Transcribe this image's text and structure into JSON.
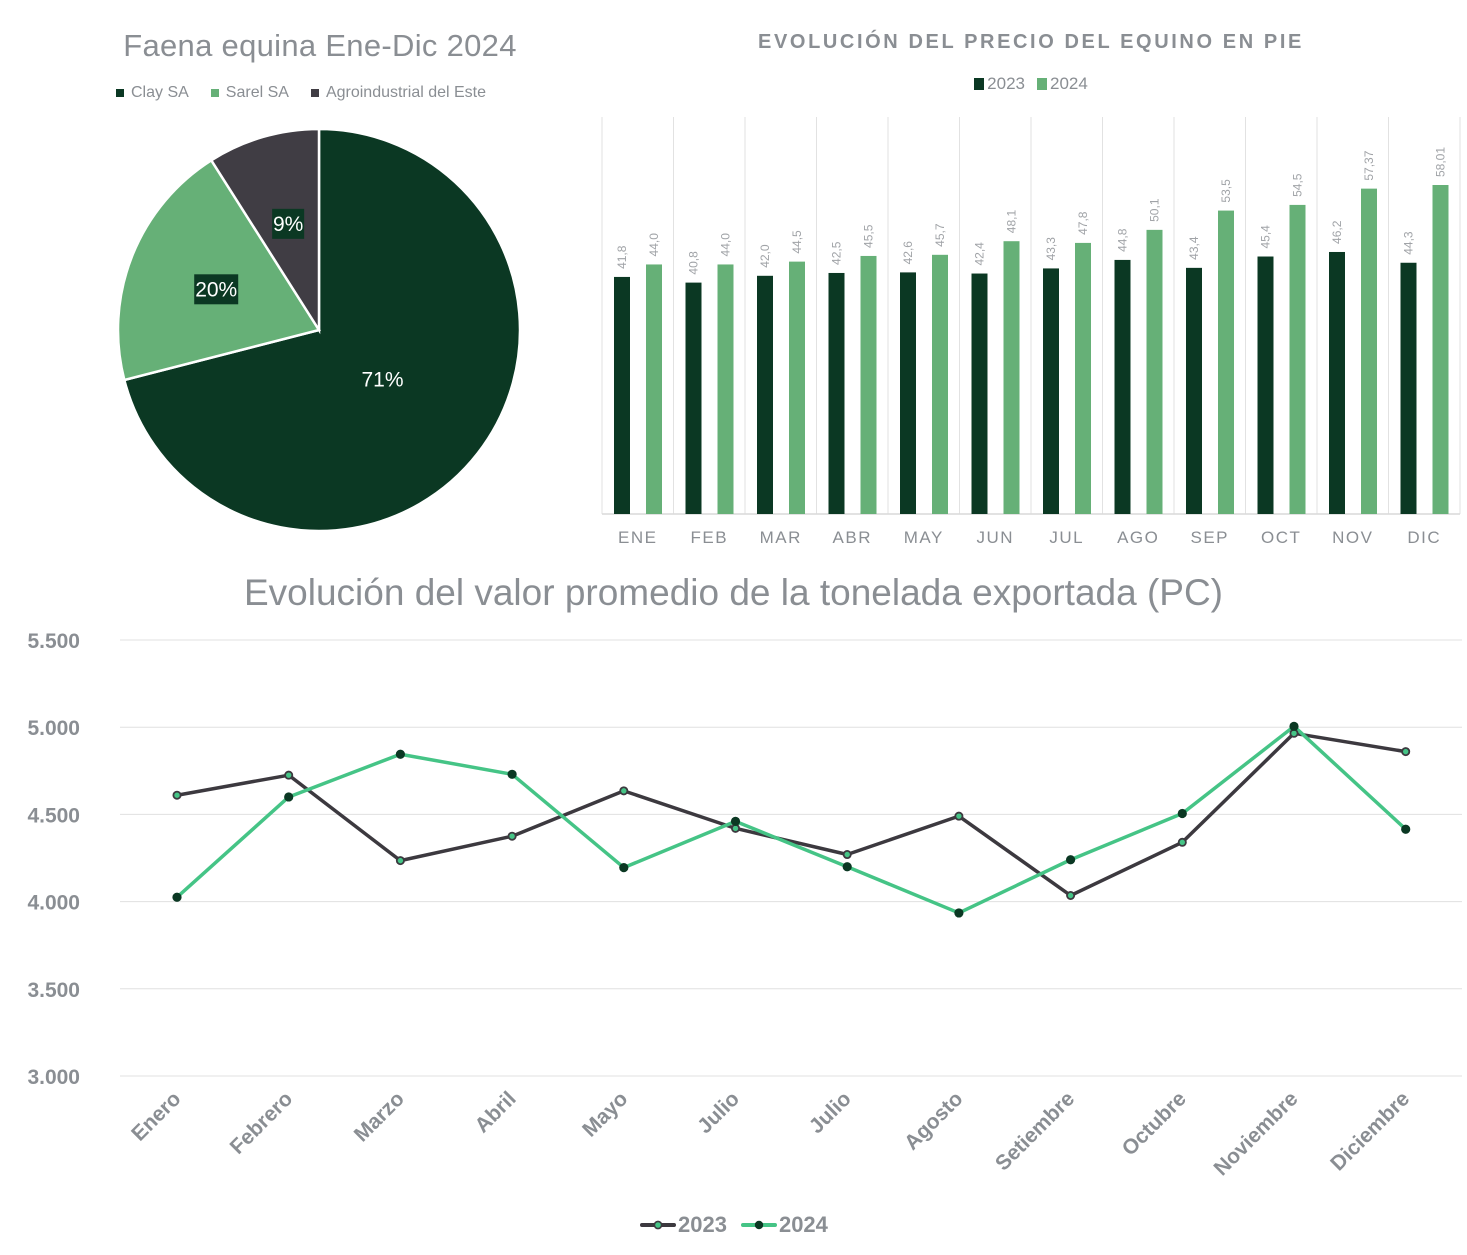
{
  "colors": {
    "dark_green": "#0b3823",
    "light_green": "#66b077",
    "gray": "#403d44",
    "line_2023": "#3c393f",
    "line_2024": "#45c486",
    "text": "#8a8e93",
    "grid": "#dcdcdc"
  },
  "chart_data": [
    {
      "type": "pie",
      "title": "Faena equina Ene-Dic 2024",
      "legend_position": "top",
      "slices": [
        {
          "label": "Clay SA",
          "value": 71,
          "display": "71%",
          "color": "#0b3823"
        },
        {
          "label": "Sarel SA",
          "value": 20,
          "display": "20%",
          "color": "#66b077"
        },
        {
          "label": "Agroindustrial del Este",
          "value": 9,
          "display": "9%",
          "color": "#403d44"
        }
      ]
    },
    {
      "type": "bar",
      "title": "EVOLUCIÓN DEL PRECIO DEL EQUINO EN PIE",
      "legend_position": "top",
      "categories": [
        "ENE",
        "FEB",
        "MAR",
        "ABR",
        "MAY",
        "JUN",
        "JUL",
        "AGO",
        "SEP",
        "OCT",
        "NOV",
        "DIC"
      ],
      "series": [
        {
          "name": "2023",
          "color": "#0b3823",
          "values": [
            41.8,
            40.8,
            42.0,
            42.5,
            42.6,
            42.4,
            43.3,
            44.8,
            43.4,
            45.4,
            46.2,
            44.3
          ],
          "labels": [
            "41,8",
            "40,8",
            "42,0",
            "42,5",
            "42,6",
            "42,4",
            "43,3",
            "44,8",
            "43,4",
            "45,4",
            "46,2",
            "44,3"
          ]
        },
        {
          "name": "2024",
          "color": "#66b077",
          "values": [
            44.0,
            44.0,
            44.5,
            45.5,
            45.7,
            48.1,
            47.8,
            50.1,
            53.5,
            54.5,
            57.37,
            58.01
          ],
          "labels": [
            "44,0",
            "44,0",
            "44,5",
            "45,5",
            "45,7",
            "48,1",
            "47,8",
            "50,1",
            "53,5",
            "54,5",
            "57,37",
            "58,01"
          ]
        }
      ],
      "ylim": [
        0,
        70
      ],
      "grid": "vertical"
    },
    {
      "type": "line",
      "title": "Evolución del valor promedio de la tonelada exportada (PC)",
      "legend_position": "bottom",
      "categories": [
        "Enero",
        "Febrero",
        "Marzo",
        "Abril",
        "Mayo",
        "Julio",
        "Julio",
        "Agosto",
        "Setiembre",
        "Octubre",
        "Noviembre",
        "Diciembre"
      ],
      "series": [
        {
          "name": "2023",
          "color": "#3c393f",
          "marker_fill": "#45c486",
          "values": [
            4610,
            4725,
            4235,
            4375,
            4635,
            4420,
            4270,
            4490,
            4035,
            4340,
            4965,
            4860
          ]
        },
        {
          "name": "2024",
          "color": "#45c486",
          "marker_fill": "#0b3823",
          "values": [
            4025,
            4600,
            4845,
            4730,
            4195,
            4460,
            4200,
            3935,
            4240,
            4505,
            5005,
            4415
          ]
        }
      ],
      "yticks": [
        5500,
        5000,
        4500,
        4000,
        3500,
        3000
      ],
      "ytick_labels": [
        "5.500",
        "5.000",
        "4.500",
        "4.000",
        "3.500",
        "3.000"
      ],
      "ylim": [
        3000,
        5500
      ],
      "grid": "horizontal"
    }
  ]
}
